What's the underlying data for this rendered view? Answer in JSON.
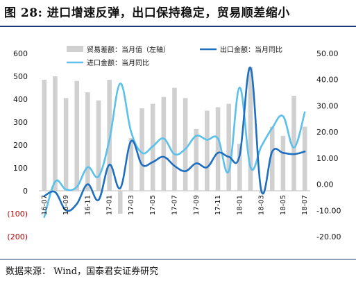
{
  "figure": {
    "title": "图 28: 进口增速反弹，出口保持稳定，贸易顺差缩小",
    "source": "数据来源：  Wind，国泰君安证券研究"
  },
  "chart_data": {
    "type": "bar",
    "categories": [
      "16-07",
      "16-08",
      "16-09",
      "16-10",
      "16-11",
      "16-12",
      "17-01",
      "17-02",
      "17-03",
      "17-04",
      "17-05",
      "17-06",
      "17-07",
      "17-08",
      "17-09",
      "17-10",
      "17-11",
      "17-12",
      "18-01",
      "18-02",
      "18-03",
      "18-04",
      "18-05",
      "18-06",
      "18-07"
    ],
    "x_tick_labels": [
      "16-07",
      "16-09",
      "16-11",
      "17-01",
      "17-03",
      "17-05",
      "17-07",
      "17-09",
      "17-11",
      "18-01",
      "18-03",
      "18-05",
      "18-07"
    ],
    "left_axis": {
      "ylim": [
        -200,
        600
      ],
      "ticks": [
        -200,
        -100,
        0,
        100,
        200,
        300,
        400,
        500,
        600
      ],
      "tick_labels": [
        "(200)",
        "(100)",
        "0",
        "100",
        "200",
        "300",
        "400",
        "500",
        "600"
      ]
    },
    "right_axis": {
      "ylim": [
        -20,
        50
      ],
      "ticks": [
        -20,
        -10,
        0,
        10,
        20,
        30,
        40,
        50
      ],
      "tick_labels": [
        "-20.00",
        "-10.00",
        "0.00",
        "10.00",
        "20.00",
        "30.00",
        "40.00",
        "50.00"
      ]
    },
    "series": [
      {
        "name": "贸易差额：当月值（左轴）",
        "type": "bar",
        "axis": "left",
        "color": "#d0d0d0",
        "values": [
          485,
          500,
          405,
          480,
          430,
          395,
          485,
          -100,
          230,
          360,
          380,
          410,
          450,
          405,
          270,
          350,
          365,
          380,
          205,
          540,
          -10,
          280,
          240,
          415,
          280
        ]
      },
      {
        "name": "出口金额：当月同比",
        "type": "line",
        "axis": "right",
        "color": "#1f6fc0",
        "values": [
          -4.5,
          -3.0,
          -10.0,
          -7.5,
          0.0,
          -6.0,
          7.5,
          -1.5,
          16.5,
          7.5,
          8.5,
          10.5,
          7.0,
          5.0,
          8.0,
          6.5,
          12.0,
          10.5,
          11.0,
          44.5,
          -2.5,
          12.5,
          12.0,
          11.5,
          12.5
        ]
      },
      {
        "name": "进口金额：当月同比",
        "type": "line",
        "axis": "right",
        "color": "#5bc0ec",
        "values": [
          -12.5,
          1.0,
          -2.0,
          -1.0,
          6.5,
          3.0,
          17.0,
          38.5,
          20.0,
          12.0,
          14.5,
          17.5,
          11.5,
          13.5,
          18.5,
          17.0,
          17.5,
          5.0,
          37.0,
          6.5,
          14.5,
          21.5,
          26.0,
          14.0,
          27.5
        ]
      }
    ],
    "legend_position": "top"
  }
}
